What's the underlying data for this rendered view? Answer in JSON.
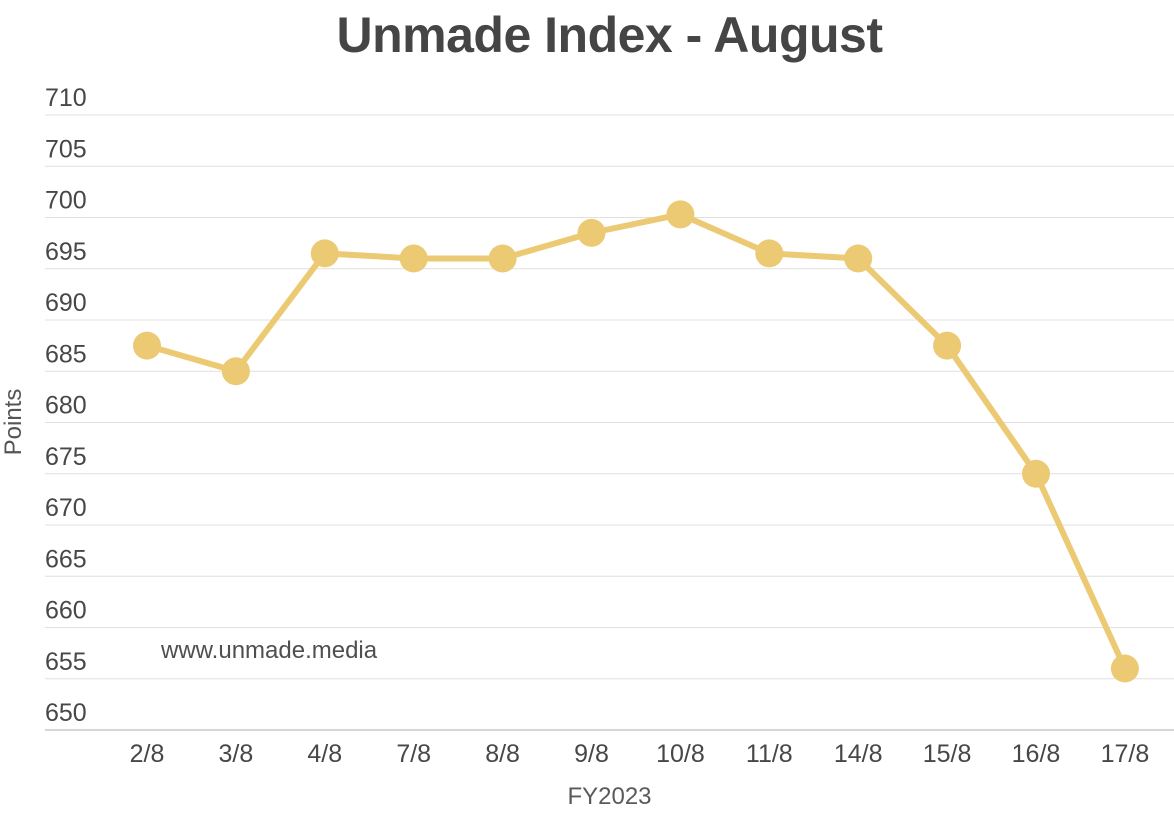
{
  "chart_data": {
    "type": "line",
    "title": "Unmade Index - August",
    "xlabel": "FY2023",
    "ylabel": "Points",
    "watermark": "www.unmade.media",
    "categories": [
      "2/8",
      "3/8",
      "4/8",
      "7/8",
      "8/8",
      "9/8",
      "10/8",
      "11/8",
      "14/8",
      "15/8",
      "16/8",
      "17/8"
    ],
    "values": [
      687.5,
      685,
      696.5,
      696,
      696,
      698.5,
      700.3,
      696.5,
      696,
      687.5,
      675,
      656
    ],
    "yticks": [
      710,
      705,
      700,
      695,
      690,
      685,
      680,
      675,
      670,
      665,
      660,
      655,
      650
    ],
    "ylim": [
      650,
      710
    ],
    "grid": "horizontal",
    "legend": "none",
    "colors": {
      "line": "#ECC973",
      "marker": "#ECC973",
      "gridline": "#E0E0E0",
      "axis_baseline": "#C8C8C8",
      "tick_label": "#474747",
      "title": "#454545",
      "axis_title": "#555555",
      "watermark": "#4F4F4F",
      "background": "#FFFFFF"
    }
  }
}
